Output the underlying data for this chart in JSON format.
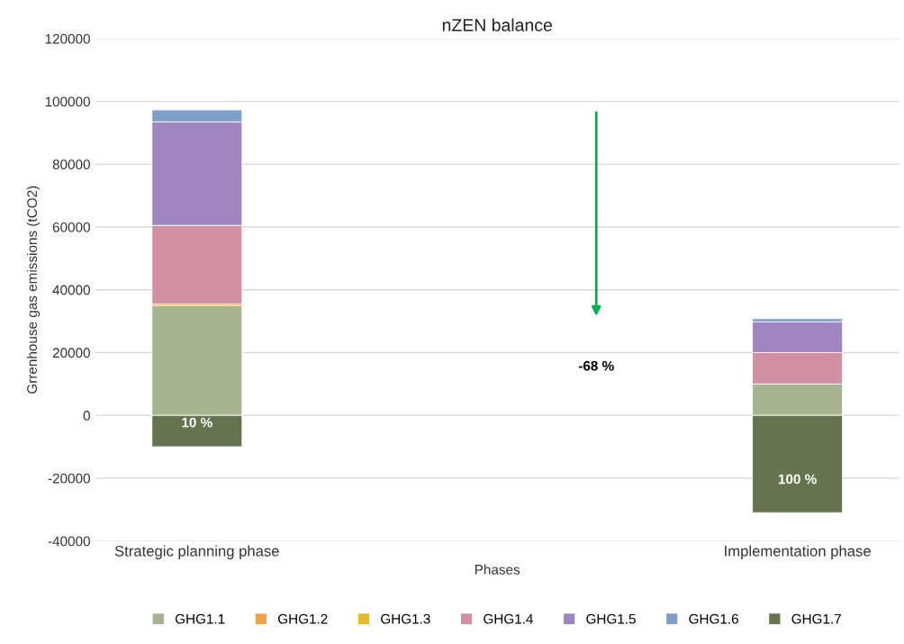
{
  "chart_data": {
    "type": "bar",
    "stacked": true,
    "title": "nZEN balance",
    "xlabel": "Phases",
    "ylabel": "Grrenhouse gas emissions (tCO2)",
    "categories": [
      "Strategic planning phase",
      null,
      "Implementation phase"
    ],
    "series": [
      {
        "name": "GHG1.1",
        "color": "#a6b48f",
        "values": [
          35000,
          null,
          10000
        ]
      },
      {
        "name": "GHG1.2",
        "color": "#f4a04a",
        "values": [
          500,
          null,
          null
        ]
      },
      {
        "name": "GHG1.3",
        "color": "#e3bb2b",
        "values": [
          null,
          null,
          null
        ]
      },
      {
        "name": "GHG1.4",
        "color": "#d190a4",
        "values": [
          25000,
          null,
          10000
        ]
      },
      {
        "name": "GHG1.5",
        "color": "#9f86c1",
        "values": [
          33000,
          null,
          9800
        ]
      },
      {
        "name": "GHG1.6",
        "color": "#7e9fc5",
        "values": [
          3800,
          null,
          1000
        ]
      },
      {
        "name": "GHG1.7",
        "color": "#65744f",
        "values": [
          -10000,
          null,
          -31000
        ]
      }
    ],
    "annotations": [
      "10 %",
      "-68 %",
      "100 %"
    ],
    "ylim": [
      -40000,
      120000
    ],
    "yticks": [
      -40000,
      -20000,
      0,
      20000,
      40000,
      60000,
      80000,
      100000,
      120000
    ],
    "grid": "y",
    "legend": "bottom"
  }
}
